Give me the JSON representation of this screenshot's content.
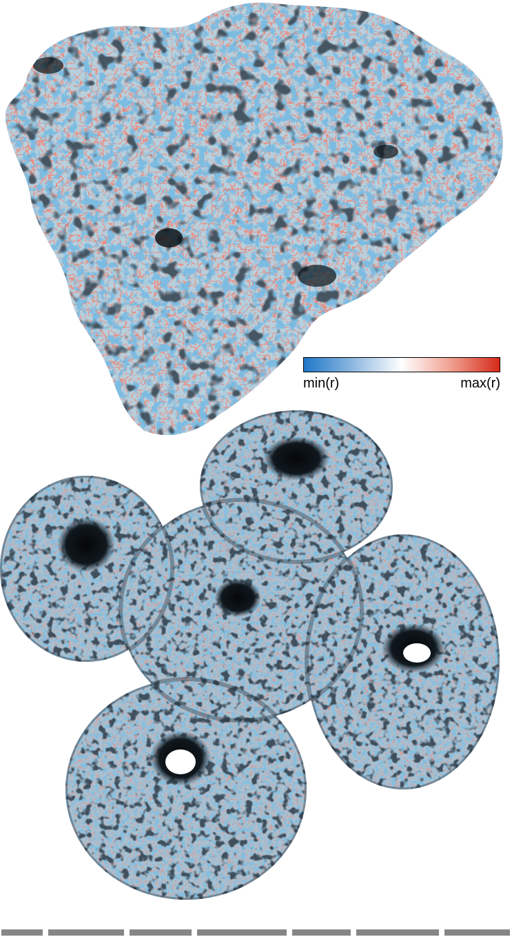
{
  "figure": {
    "description_hidden": false,
    "colors": {
      "min": "#1f78c8",
      "mid": "#ffffff",
      "max": "#d62a1a",
      "atom_blue": "#3f86c0",
      "surface_light": "#a9c4d6",
      "crevice": "#1a2530"
    }
  },
  "colorbar": {
    "min_label": "min(r)",
    "max_label": "max(r)"
  }
}
